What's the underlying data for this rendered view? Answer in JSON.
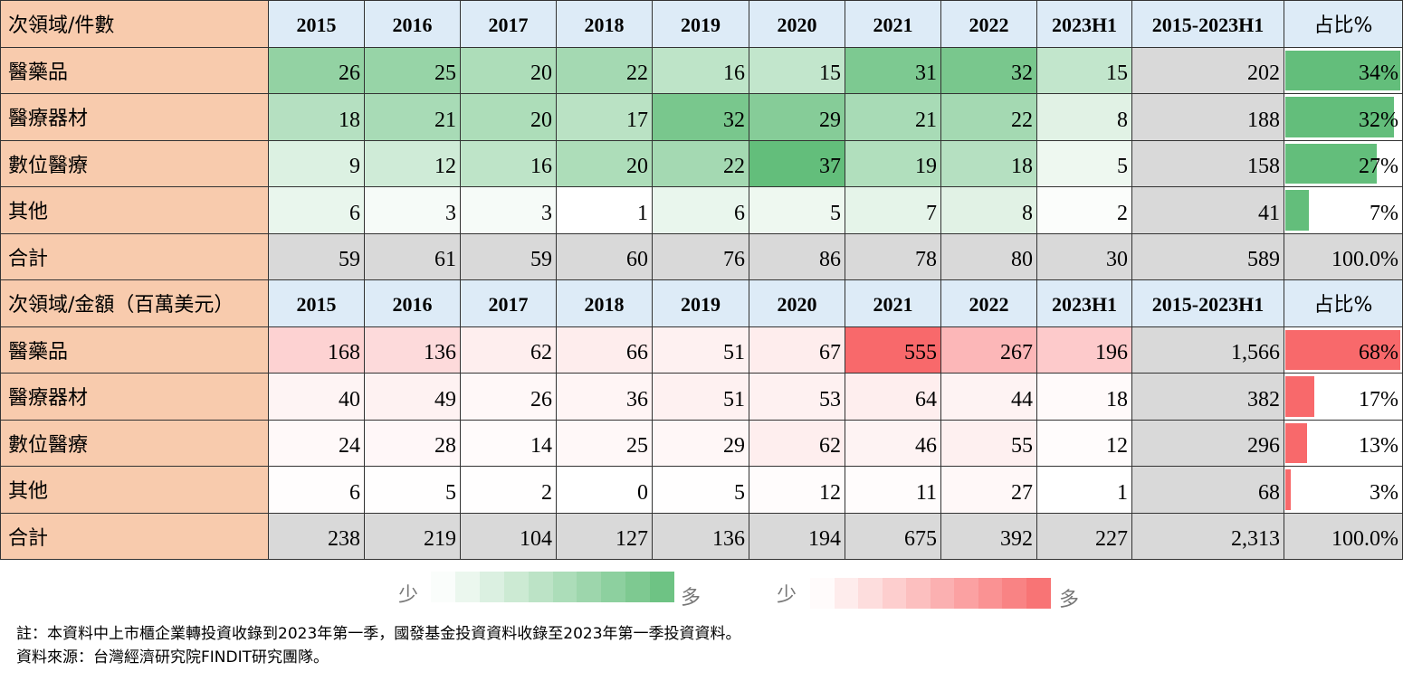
{
  "tables": [
    {
      "heat_color": "#63be7b",
      "header": [
        "次領域/件數",
        "2015",
        "2016",
        "2017",
        "2018",
        "2019",
        "2020",
        "2021",
        "2022",
        "2023H1",
        "2015-2023H1",
        "占比%"
      ],
      "rows": [
        [
          "醫藥品",
          26,
          25,
          20,
          22,
          16,
          15,
          31,
          32,
          15,
          202,
          "34%"
        ],
        [
          "醫療器材",
          18,
          21,
          20,
          17,
          32,
          29,
          21,
          22,
          8,
          188,
          "32%"
        ],
        [
          "數位醫療",
          9,
          12,
          16,
          20,
          22,
          37,
          19,
          18,
          5,
          158,
          "27%"
        ],
        [
          "其他",
          6,
          3,
          3,
          1,
          6,
          5,
          7,
          8,
          2,
          41,
          "7%"
        ],
        [
          "合計",
          59,
          61,
          59,
          60,
          76,
          86,
          78,
          80,
          30,
          589,
          "100.0%"
        ]
      ],
      "legend": {
        "low": "少",
        "high": "多"
      }
    },
    {
      "heat_color": "#f8696b",
      "header": [
        "次領域/金額（百萬美元）",
        "2015",
        "2016",
        "2017",
        "2018",
        "2019",
        "2020",
        "2021",
        "2022",
        "2023H1",
        "2015-2023H1",
        "占比%"
      ],
      "rows": [
        [
          "醫藥品",
          168,
          136,
          62,
          66,
          51,
          67,
          555,
          267,
          196,
          "1,566",
          "68%"
        ],
        [
          "醫療器材",
          40,
          49,
          26,
          36,
          51,
          53,
          64,
          44,
          18,
          382,
          "17%"
        ],
        [
          "數位醫療",
          24,
          28,
          14,
          25,
          29,
          62,
          46,
          55,
          12,
          296,
          "13%"
        ],
        [
          "其他",
          6,
          5,
          2,
          0,
          5,
          12,
          11,
          27,
          1,
          68,
          "3%"
        ],
        [
          "合計",
          238,
          219,
          104,
          127,
          136,
          194,
          675,
          392,
          227,
          "2,313",
          "100.0%"
        ]
      ],
      "legend": {
        "low": "少",
        "high": "多"
      }
    }
  ],
  "notes": [
    "註：本資料中上市櫃企業轉投資收錄到2023年第一季，國發基金投資資料收錄至2023年第一季投資資料。",
    "資料來源：台灣經濟研究院FINDIT研究團隊。"
  ]
}
